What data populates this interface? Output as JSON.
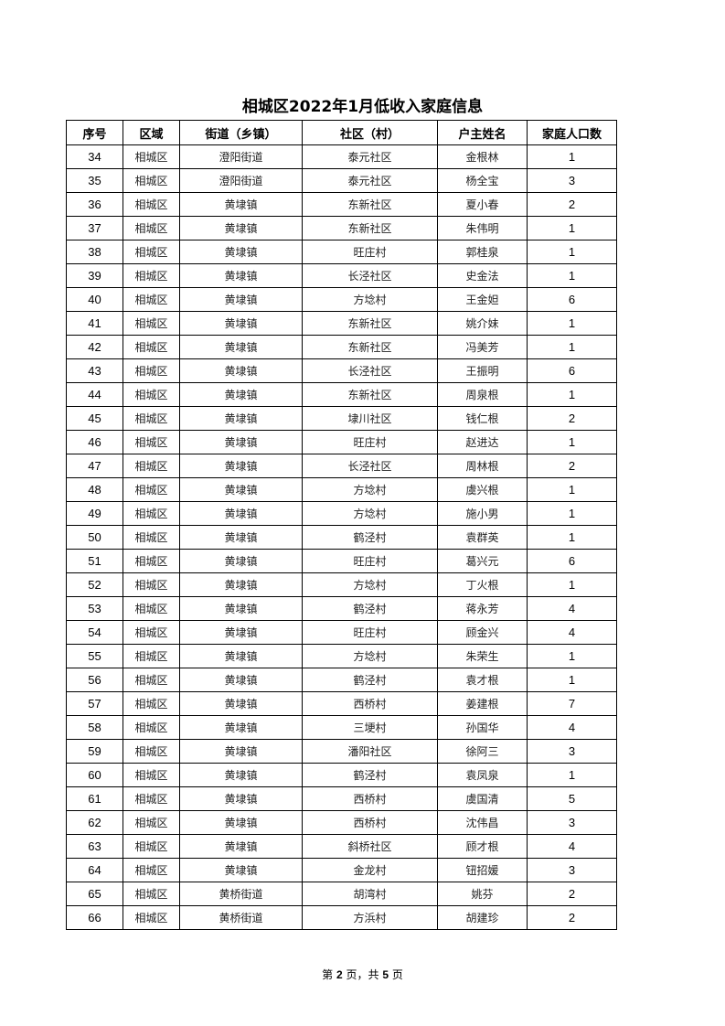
{
  "title": "相城区2022年1月低收入家庭信息",
  "table": {
    "headers": [
      "序号",
      "区域",
      "街道（乡镇）",
      "社区（村）",
      "户主姓名",
      "家庭人口数"
    ],
    "rows": [
      [
        "34",
        "相城区",
        "澄阳街道",
        "泰元社区",
        "金根林",
        "1"
      ],
      [
        "35",
        "相城区",
        "澄阳街道",
        "泰元社区",
        "杨全宝",
        "3"
      ],
      [
        "36",
        "相城区",
        "黄埭镇",
        "东新社区",
        "夏小春",
        "2"
      ],
      [
        "37",
        "相城区",
        "黄埭镇",
        "东新社区",
        "朱伟明",
        "1"
      ],
      [
        "38",
        "相城区",
        "黄埭镇",
        "旺庄村",
        "郭桂泉",
        "1"
      ],
      [
        "39",
        "相城区",
        "黄埭镇",
        "长泾社区",
        "史金法",
        "1"
      ],
      [
        "40",
        "相城区",
        "黄埭镇",
        "方埝村",
        "王金妲",
        "6"
      ],
      [
        "41",
        "相城区",
        "黄埭镇",
        "东新社区",
        "姚介妹",
        "1"
      ],
      [
        "42",
        "相城区",
        "黄埭镇",
        "东新社区",
        "冯美芳",
        "1"
      ],
      [
        "43",
        "相城区",
        "黄埭镇",
        "长泾社区",
        "王振明",
        "6"
      ],
      [
        "44",
        "相城区",
        "黄埭镇",
        "东新社区",
        "周泉根",
        "1"
      ],
      [
        "45",
        "相城区",
        "黄埭镇",
        "埭川社区",
        "钱仁根",
        "2"
      ],
      [
        "46",
        "相城区",
        "黄埭镇",
        "旺庄村",
        "赵进达",
        "1"
      ],
      [
        "47",
        "相城区",
        "黄埭镇",
        "长泾社区",
        "周林根",
        "2"
      ],
      [
        "48",
        "相城区",
        "黄埭镇",
        "方埝村",
        "虞兴根",
        "1"
      ],
      [
        "49",
        "相城区",
        "黄埭镇",
        "方埝村",
        "施小男",
        "1"
      ],
      [
        "50",
        "相城区",
        "黄埭镇",
        "鹤泾村",
        "袁群英",
        "1"
      ],
      [
        "51",
        "相城区",
        "黄埭镇",
        "旺庄村",
        "葛兴元",
        "6"
      ],
      [
        "52",
        "相城区",
        "黄埭镇",
        "方埝村",
        "丁火根",
        "1"
      ],
      [
        "53",
        "相城区",
        "黄埭镇",
        "鹤泾村",
        "蒋永芳",
        "4"
      ],
      [
        "54",
        "相城区",
        "黄埭镇",
        "旺庄村",
        "顾金兴",
        "4"
      ],
      [
        "55",
        "相城区",
        "黄埭镇",
        "方埝村",
        "朱荣生",
        "1"
      ],
      [
        "56",
        "相城区",
        "黄埭镇",
        "鹤泾村",
        "袁才根",
        "1"
      ],
      [
        "57",
        "相城区",
        "黄埭镇",
        "西桥村",
        "姜建根",
        "7"
      ],
      [
        "58",
        "相城区",
        "黄埭镇",
        "三埂村",
        "孙国华",
        "4"
      ],
      [
        "59",
        "相城区",
        "黄埭镇",
        "潘阳社区",
        "徐阿三",
        "3"
      ],
      [
        "60",
        "相城区",
        "黄埭镇",
        "鹤泾村",
        "袁凤泉",
        "1"
      ],
      [
        "61",
        "相城区",
        "黄埭镇",
        "西桥村",
        "虞国清",
        "5"
      ],
      [
        "62",
        "相城区",
        "黄埭镇",
        "西桥村",
        "沈伟昌",
        "3"
      ],
      [
        "63",
        "相城区",
        "黄埭镇",
        "斜桥社区",
        "顾才根",
        "4"
      ],
      [
        "64",
        "相城区",
        "黄埭镇",
        "金龙村",
        "钮招媛",
        "3"
      ],
      [
        "65",
        "相城区",
        "黄桥街道",
        "胡湾村",
        "姚芬",
        "2"
      ],
      [
        "66",
        "相城区",
        "黄桥街道",
        "方浜村",
        "胡建珍",
        "2"
      ]
    ]
  },
  "footer": {
    "prefix": "第",
    "page": "2",
    "middle": "页，共",
    "total": "5",
    "suffix": "页"
  }
}
